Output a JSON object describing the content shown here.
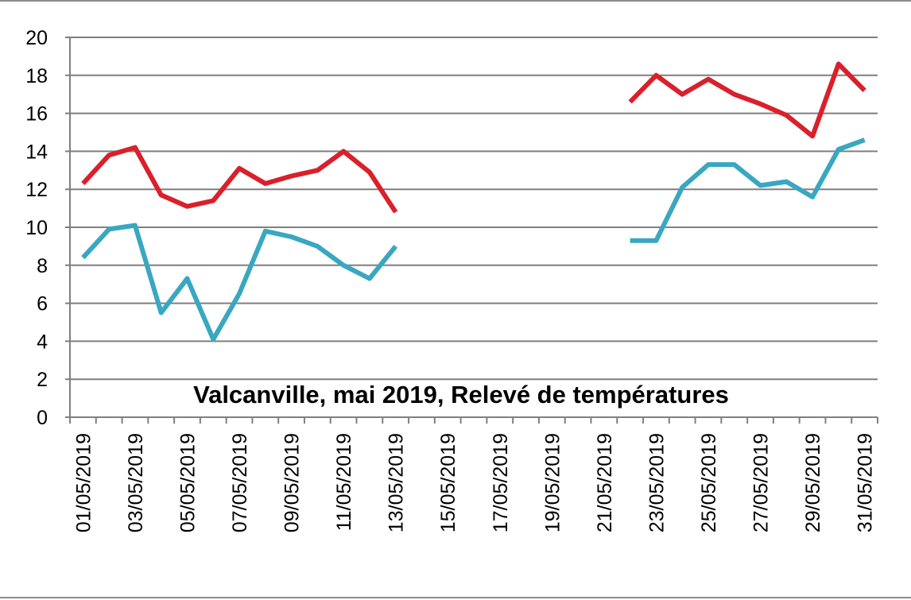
{
  "chart_data": {
    "type": "line",
    "title": "Valcanville, mai 2019, Relevé de températures",
    "xlabel": "",
    "ylabel": "",
    "ylim": [
      0,
      20
    ],
    "yticks": [
      "0",
      "2",
      "4",
      "6",
      "8",
      "10",
      "12",
      "14",
      "16",
      "18",
      "20"
    ],
    "grid": true,
    "legend": "none",
    "x": [
      "01/05/2019",
      "02/05/2019",
      "03/05/2019",
      "04/05/2019",
      "05/05/2019",
      "06/05/2019",
      "07/05/2019",
      "08/05/2019",
      "09/05/2019",
      "10/05/2019",
      "11/05/2019",
      "12/05/2019",
      "13/05/2019",
      "14/05/2019",
      "15/05/2019",
      "16/05/2019",
      "17/05/2019",
      "18/05/2019",
      "19/05/2019",
      "20/05/2019",
      "21/05/2019",
      "22/05/2019",
      "23/05/2019",
      "24/05/2019",
      "25/05/2019",
      "26/05/2019",
      "27/05/2019",
      "28/05/2019",
      "29/05/2019",
      "30/05/2019",
      "31/05/2019"
    ],
    "xtick_labels": [
      "01/05/2019",
      "03/05/2019",
      "05/05/2019",
      "07/05/2019",
      "09/05/2019",
      "11/05/2019",
      "13/05/2019",
      "15/05/2019",
      "17/05/2019",
      "19/05/2019",
      "21/05/2019",
      "23/05/2019",
      "25/05/2019",
      "27/05/2019",
      "29/05/2019",
      "31/05/2019"
    ],
    "series": [
      {
        "color": "#d9202b",
        "values": [
          12.3,
          13.8,
          14.2,
          11.7,
          11.1,
          11.4,
          13.1,
          12.3,
          12.7,
          13.0,
          14.0,
          12.9,
          10.8,
          null,
          null,
          null,
          null,
          null,
          null,
          null,
          null,
          16.6,
          18.0,
          17.0,
          17.8,
          17.0,
          16.5,
          15.9,
          14.8,
          18.6,
          17.2
        ]
      },
      {
        "color": "#3aa7c1",
        "values": [
          8.4,
          9.9,
          10.1,
          5.5,
          7.3,
          4.1,
          6.5,
          9.8,
          9.5,
          9.0,
          8.0,
          7.3,
          9.0,
          null,
          null,
          null,
          null,
          null,
          null,
          null,
          null,
          9.3,
          9.3,
          12.1,
          13.3,
          13.3,
          12.2,
          12.4,
          11.6,
          14.1,
          14.6
        ]
      }
    ],
    "axis_color": "#808080",
    "grid_color": "#7f7f7f"
  }
}
